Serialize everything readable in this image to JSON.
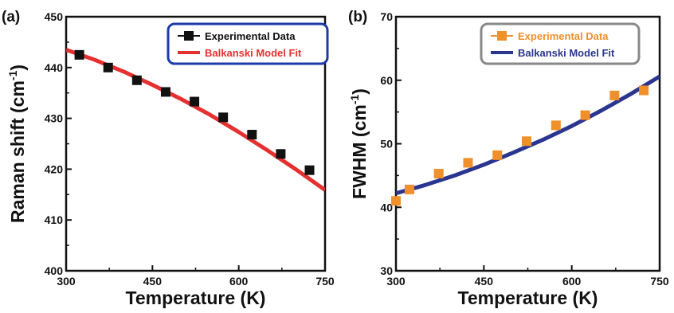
{
  "chart_data": [
    {
      "type": "scatter",
      "panel_label": "(a)",
      "xlabel": "Temperature (K)",
      "ylabel": "Raman shift (cm",
      "ylabel_sup": "-1",
      "ylabel_end": ")",
      "xlim": [
        300,
        750
      ],
      "ylim": [
        400,
        450
      ],
      "xticks": [
        300,
        450,
        600,
        750
      ],
      "yticks": [
        400,
        410,
        420,
        430,
        440,
        450
      ],
      "legend_position": "top-right",
      "legend_border_color": "#1e3aa8",
      "series": [
        {
          "name": "Experimental Data",
          "kind": "scatter",
          "marker": "square",
          "color": "#111111",
          "x": [
            323,
            373,
            423,
            473,
            523,
            573,
            623,
            673,
            723
          ],
          "y": [
            442.5,
            440.0,
            437.5,
            435.2,
            433.3,
            430.2,
            426.8,
            423.0,
            419.8
          ]
        },
        {
          "name": "Balkanski Model Fit",
          "kind": "line",
          "color": "#e53030",
          "x": [
            300,
            350,
            400,
            450,
            500,
            550,
            600,
            650,
            700,
            750
          ],
          "y": [
            443.5,
            441.5,
            439.2,
            436.6,
            433.8,
            430.7,
            427.3,
            423.7,
            419.9,
            415.9
          ]
        }
      ]
    },
    {
      "type": "scatter",
      "panel_label": "(b)",
      "xlabel": "Temperature (K)",
      "ylabel": "FWHM (cm",
      "ylabel_sup": "-1",
      "ylabel_end": ")",
      "xlim": [
        300,
        750
      ],
      "ylim": [
        30,
        70
      ],
      "xticks": [
        300,
        450,
        600,
        750
      ],
      "yticks": [
        30,
        40,
        50,
        60,
        70
      ],
      "legend_position": "top-right",
      "legend_border_color": "#888888",
      "series": [
        {
          "name": "Experimental Data",
          "kind": "scatter",
          "marker": "square",
          "color": "#f0902a",
          "x": [
            300,
            323,
            373,
            423,
            473,
            523,
            573,
            623,
            673,
            723
          ],
          "y": [
            41.0,
            42.8,
            45.3,
            47.0,
            48.2,
            50.4,
            52.9,
            54.5,
            57.6,
            58.4
          ]
        },
        {
          "name": "Balkanski Model Fit",
          "kind": "line",
          "color": "#2a3590",
          "x": [
            300,
            350,
            400,
            450,
            500,
            550,
            600,
            650,
            700,
            750
          ],
          "y": [
            42.2,
            43.5,
            45.0,
            46.7,
            48.6,
            50.6,
            52.8,
            55.2,
            57.8,
            60.6
          ]
        }
      ]
    }
  ]
}
